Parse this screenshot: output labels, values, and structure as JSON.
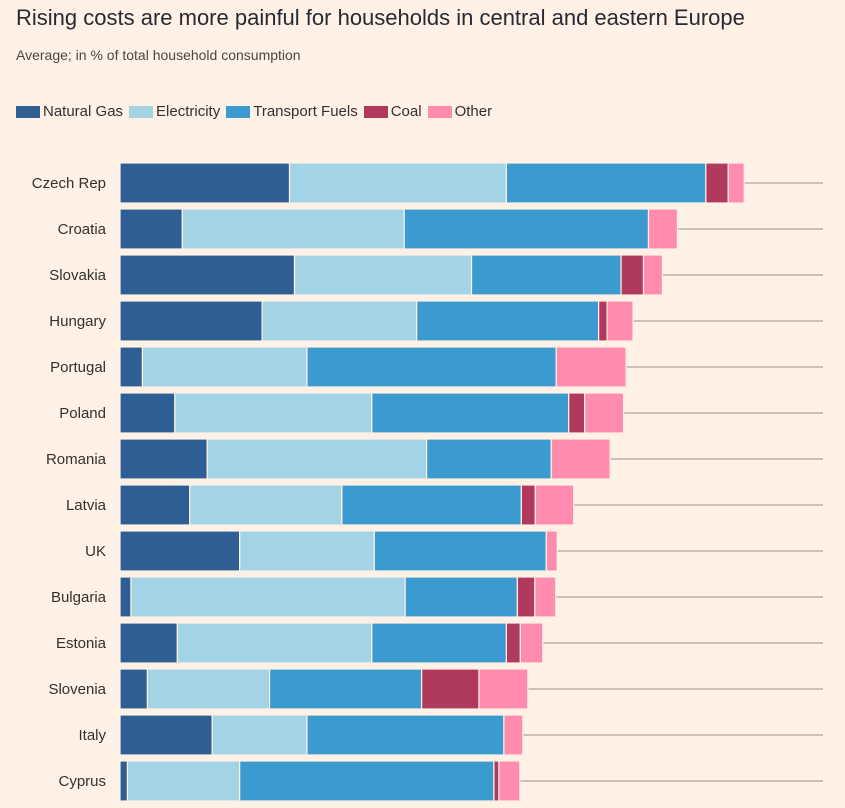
{
  "title": "Rising costs are more painful for households in central and eastern Europe",
  "subtitle": "Average; in % of total household consumption",
  "chart_data": {
    "type": "bar",
    "orientation": "horizontal",
    "stacked": true,
    "categories": [
      "Czech Rep",
      "Croatia",
      "Slovakia",
      "Hungary",
      "Portugal",
      "Poland",
      "Romania",
      "Latvia",
      "UK",
      "Bulgaria",
      "Estonia",
      "Slovenia",
      "Italy",
      "Cyprus"
    ],
    "series": [
      {
        "name": "Natural Gas",
        "color": "#2E5E93",
        "values": [
          3.4,
          1.25,
          3.5,
          2.85,
          0.45,
          1.1,
          1.75,
          1.4,
          2.4,
          0.22,
          1.15,
          0.55,
          1.85,
          0.15
        ]
      },
      {
        "name": "Electricity",
        "color": "#A2D4E5",
        "values": [
          4.35,
          4.45,
          3.55,
          3.1,
          3.3,
          3.95,
          4.4,
          3.05,
          2.7,
          5.5,
          3.9,
          2.45,
          1.9,
          2.25
        ]
      },
      {
        "name": "Transport Fuels",
        "color": "#3B9BD0",
        "values": [
          4.0,
          4.9,
          3.0,
          3.65,
          5.0,
          3.95,
          2.5,
          3.6,
          3.45,
          2.25,
          2.7,
          3.05,
          3.95,
          5.1
        ]
      },
      {
        "name": "Coal",
        "color": "#B03A5E",
        "values": [
          0.45,
          0.0,
          0.45,
          0.17,
          0.0,
          0.32,
          0.0,
          0.28,
          0.0,
          0.35,
          0.28,
          1.15,
          0.0,
          0.1
        ]
      },
      {
        "name": "Other",
        "color": "#FF8CAE",
        "values": [
          0.32,
          0.58,
          0.38,
          0.52,
          1.4,
          0.78,
          1.18,
          0.77,
          0.22,
          0.42,
          0.45,
          0.98,
          0.38,
          0.42
        ]
      }
    ],
    "xlim": [
      0,
      14.1
    ],
    "grid": true,
    "legend": "top-left"
  }
}
